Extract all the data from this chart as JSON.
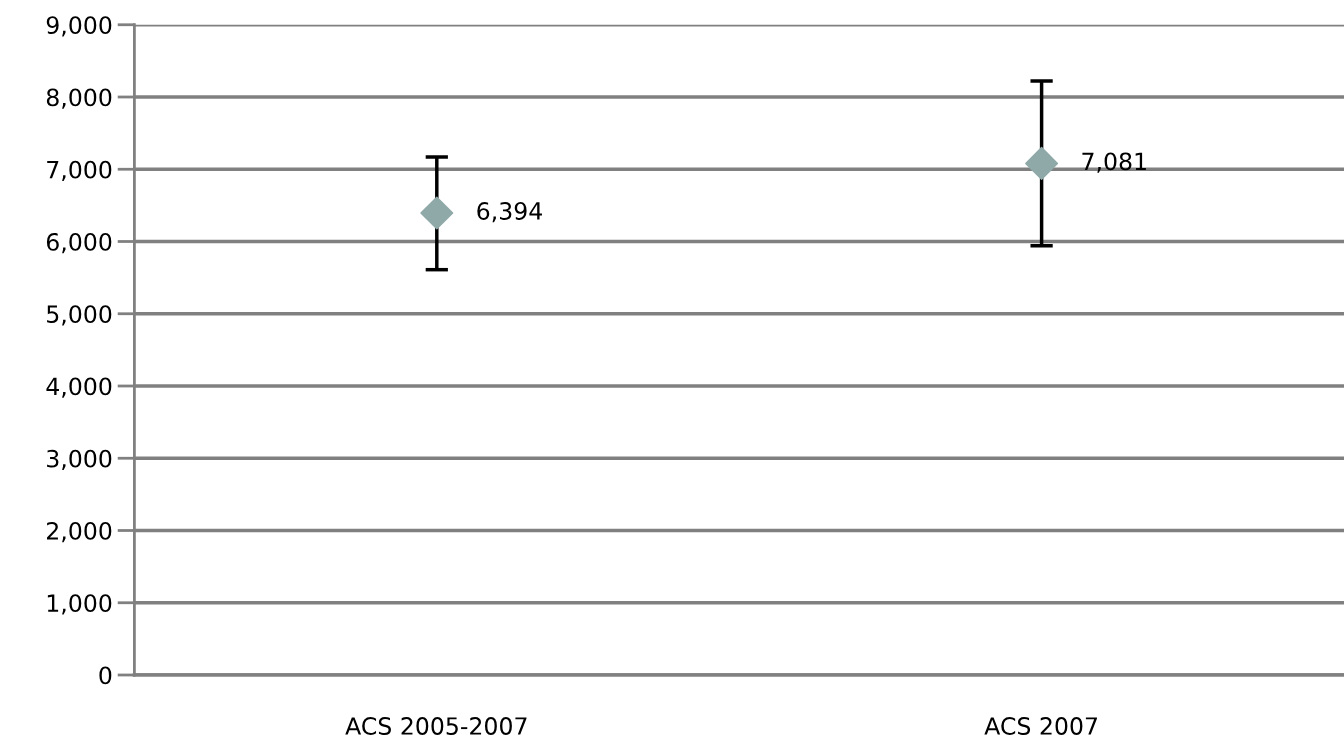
{
  "chart_data": {
    "type": "scatter",
    "categories": [
      "ACS 2005-2007",
      "ACS 2007"
    ],
    "series": [
      {
        "color": "#8fa9a8",
        "values": [
          6394,
          7081
        ],
        "value_labels": [
          "6,394",
          "7,081"
        ],
        "errors": [
          [
            5610,
            7170
          ],
          [
            5940,
            8220
          ]
        ]
      }
    ],
    "ylim": [
      0,
      9000
    ],
    "yticks": [
      {
        "value": 0,
        "label": "0"
      },
      {
        "value": 1000,
        "label": "1,000"
      },
      {
        "value": 2000,
        "label": "2,000"
      },
      {
        "value": 3000,
        "label": "3,000"
      },
      {
        "value": 4000,
        "label": "4,000"
      },
      {
        "value": 5000,
        "label": "5,000"
      },
      {
        "value": 6000,
        "label": "6,000"
      },
      {
        "value": 7000,
        "label": "7,000"
      },
      {
        "value": 8000,
        "label": "8,000"
      },
      {
        "value": 9000,
        "label": "9,000"
      }
    ],
    "grid": "y",
    "marker": "diamond"
  }
}
